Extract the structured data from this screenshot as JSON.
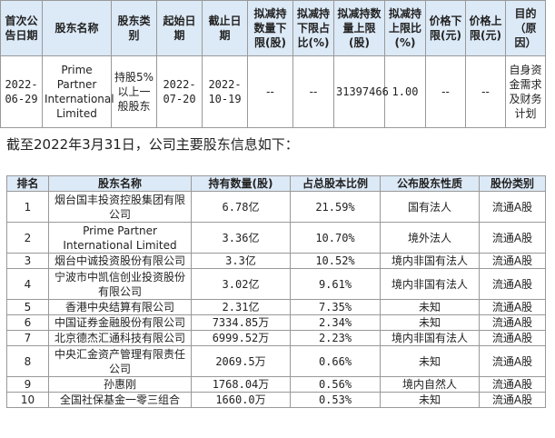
{
  "table1": {
    "headers": [
      "首次公告日期",
      "股东名称",
      "股东类别",
      "起始日期",
      "截止日期",
      "拟减持数量下限(股)",
      "拟减持下限占比(%)",
      "拟减持数量上限(股)",
      "拟减持上限比(%)",
      "价格下限(元)",
      "价格上限(元)",
      "目的（原因）"
    ],
    "row": [
      "2022-06-29",
      "Prime Partner International Limited",
      "持股5%以上一般股东",
      "2022-07-20",
      "2022-10-19",
      "--",
      "--",
      "31397466",
      "1.00",
      "--",
      "--",
      "自身资金需求及财务计划"
    ]
  },
  "summary_text": "截至2022年3月31日，公司主要股东信息如下：",
  "table2": {
    "headers": [
      "排名",
      "股东名称",
      "持有数量(股)",
      "占总股本比例",
      "公布股东性质",
      "股份类别"
    ],
    "rows": [
      [
        "1",
        "烟台国丰投资控股集团有限公司",
        "6.78亿",
        "21.59%",
        "国有法人",
        "流通A股"
      ],
      [
        "2",
        "Prime Partner International Limited",
        "3.36亿",
        "10.70%",
        "境外法人",
        "流通A股"
      ],
      [
        "3",
        "烟台中诚投资股份有限公司",
        "3.3亿",
        "10.52%",
        "境内非国有法人",
        "流通A股"
      ],
      [
        "4",
        "宁波市中凯信创业投资股份有限公司",
        "3.02亿",
        "9.61%",
        "境内非国有法人",
        "流通A股"
      ],
      [
        "5",
        "香港中央结算有限公司",
        "2.31亿",
        "7.35%",
        "未知",
        "流通A股"
      ],
      [
        "6",
        "中国证券金融股份有限公司",
        "7334.85万",
        "2.34%",
        "未知",
        "流通A股"
      ],
      [
        "7",
        "北京德杰汇通科技有限公司",
        "6999.52万",
        "2.23%",
        "境内非国有法人",
        "流通A股"
      ],
      [
        "8",
        "中央汇金资产管理有限责任公司",
        "2069.5万",
        "0.66%",
        "未知",
        "流通A股"
      ],
      [
        "9",
        "孙惠刚",
        "1768.04万",
        "0.56%",
        "境内自然人",
        "流通A股"
      ],
      [
        "10",
        "全国社保基金一零三组合",
        "1660.0万",
        "0.53%",
        "未知",
        "流通A股"
      ]
    ]
  }
}
